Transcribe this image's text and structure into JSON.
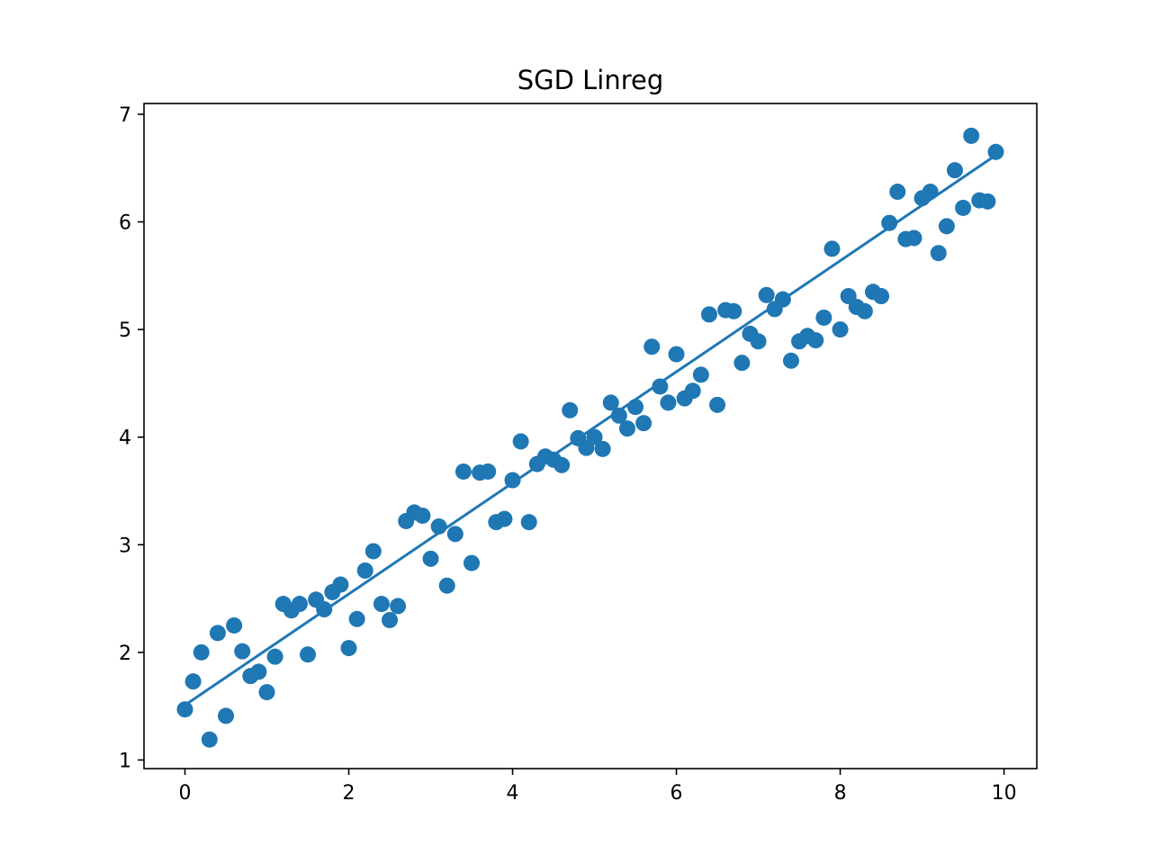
{
  "chart_data": {
    "type": "scatter",
    "title": "SGD Linreg",
    "xlabel": "",
    "ylabel": "",
    "xlim": [
      -0.5,
      10.4
    ],
    "ylim": [
      0.92,
      7.1
    ],
    "xticks": [
      0,
      2,
      4,
      6,
      8,
      10
    ],
    "yticks": [
      1,
      2,
      3,
      4,
      5,
      6,
      7
    ],
    "grid": false,
    "colors": {
      "series": "#1f77b4",
      "axes": "#000000",
      "background": "#ffffff"
    },
    "series": [
      {
        "kind": "scatter",
        "x": [
          0.0,
          0.1,
          0.2,
          0.3,
          0.4,
          0.5,
          0.6,
          0.7,
          0.8,
          0.9,
          1.0,
          1.1,
          1.2,
          1.3,
          1.4,
          1.5,
          1.6,
          1.7,
          1.8,
          1.9,
          2.0,
          2.1,
          2.2,
          2.3,
          2.4,
          2.5,
          2.6,
          2.7,
          2.8,
          2.9,
          3.0,
          3.1,
          3.2,
          3.3,
          3.4,
          3.5,
          3.6,
          3.7,
          3.8,
          3.9,
          4.0,
          4.1,
          4.2,
          4.3,
          4.4,
          4.5,
          4.6,
          4.7,
          4.8,
          4.9,
          5.0,
          5.1,
          5.2,
          5.3,
          5.4,
          5.5,
          5.6,
          5.7,
          5.8,
          5.9,
          6.0,
          6.1,
          6.2,
          6.3,
          6.4,
          6.5,
          6.6,
          6.7,
          6.8,
          6.9,
          7.0,
          7.1,
          7.2,
          7.3,
          7.4,
          7.5,
          7.6,
          7.7,
          7.8,
          7.9,
          8.0,
          8.1,
          8.2,
          8.3,
          8.4,
          8.5,
          8.6,
          8.7,
          8.8,
          8.9,
          9.0,
          9.1,
          9.2,
          9.3,
          9.4,
          9.5,
          9.6,
          9.7,
          9.8,
          9.9
        ],
        "y": [
          1.47,
          1.73,
          2.0,
          1.19,
          2.18,
          1.41,
          2.25,
          2.01,
          1.78,
          1.82,
          1.63,
          1.96,
          2.45,
          2.39,
          2.45,
          1.98,
          2.49,
          2.4,
          2.56,
          2.63,
          2.04,
          2.31,
          2.76,
          2.94,
          2.45,
          2.3,
          2.43,
          3.22,
          3.3,
          3.27,
          2.87,
          3.17,
          2.62,
          3.1,
          3.68,
          2.83,
          3.67,
          3.68,
          3.21,
          3.24,
          3.6,
          3.96,
          3.21,
          3.75,
          3.82,
          3.79,
          3.74,
          4.25,
          3.99,
          3.9,
          4.0,
          3.89,
          4.32,
          4.2,
          4.08,
          4.28,
          4.13,
          4.84,
          4.47,
          4.32,
          4.77,
          4.36,
          4.43,
          4.58,
          5.14,
          4.3,
          5.18,
          5.17,
          4.69,
          4.96,
          4.89,
          5.32,
          5.19,
          5.28,
          4.71,
          4.89,
          4.94,
          4.9,
          5.11,
          5.75,
          5.0,
          5.31,
          5.21,
          5.17,
          5.35,
          5.31,
          5.99,
          6.28,
          5.84,
          5.85,
          6.22,
          6.28,
          5.71,
          5.96,
          6.48,
          6.13,
          6.8,
          6.2,
          6.19,
          6.65
        ]
      },
      {
        "kind": "line",
        "x": [
          0.0,
          9.9
        ],
        "y": [
          1.51,
          6.62
        ]
      }
    ]
  }
}
